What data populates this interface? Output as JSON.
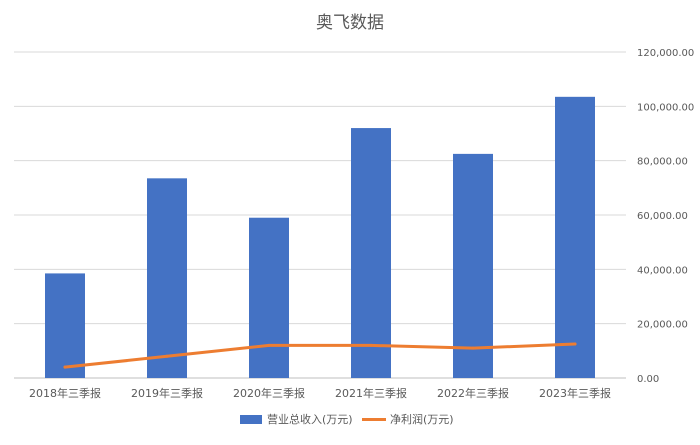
{
  "chart_data": {
    "type": "bar",
    "title": "奥飞数据",
    "categories": [
      "2018年三季报",
      "2019年三季报",
      "2020年三季报",
      "2021年三季报",
      "2022年三季报",
      "2023年三季报"
    ],
    "series": [
      {
        "name": "营业总收入(万元)",
        "type": "bar",
        "color": "#4472C4",
        "values": [
          38500,
          73500,
          59000,
          92000,
          82500,
          103500
        ]
      },
      {
        "name": "净利润(万元)",
        "type": "line",
        "color": "#ED7D31",
        "values": [
          4000,
          8000,
          12000,
          12000,
          11000,
          12500
        ]
      }
    ],
    "y_axis": {
      "position": "right",
      "min": 0,
      "max": 120000,
      "tick_labels": [
        "0.00",
        "20,000.00",
        "40,000.00",
        "60,000.00",
        "80,000.00",
        "100,000.00",
        "120,000.00"
      ]
    },
    "grid": true,
    "legend_position": "bottom"
  }
}
